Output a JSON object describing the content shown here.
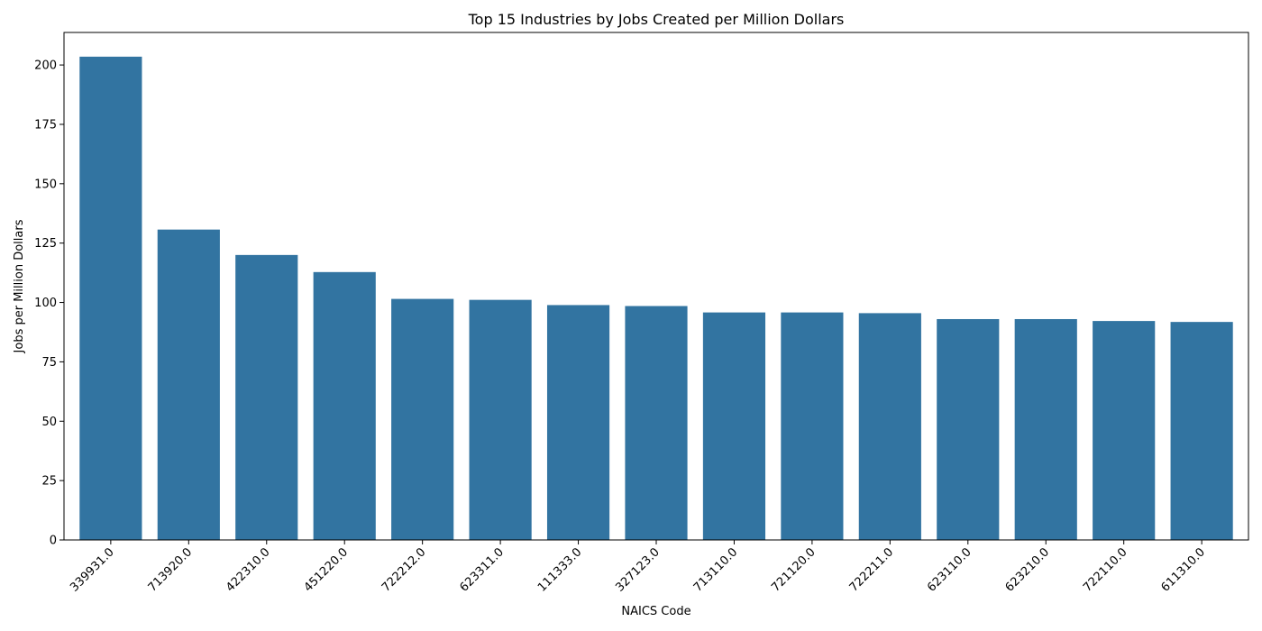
{
  "chart_data": {
    "type": "bar",
    "title": "Top 15 Industries by Jobs Created per Million Dollars",
    "xlabel": "NAICS Code",
    "ylabel": "Jobs per Million Dollars",
    "categories": [
      "339931.0",
      "713920.0",
      "422310.0",
      "451220.0",
      "722212.0",
      "623311.0",
      "111333.0",
      "327123.0",
      "713110.0",
      "721120.0",
      "722211.0",
      "623110.0",
      "623210.0",
      "722110.0",
      "611310.0"
    ],
    "values": [
      203.5,
      130.7,
      120.0,
      112.8,
      101.5,
      101.1,
      98.9,
      98.5,
      95.8,
      95.8,
      95.5,
      93.0,
      93.0,
      92.2,
      91.8
    ],
    "ylim": [
      0,
      213.7
    ],
    "yticks": [
      0,
      25,
      50,
      75,
      100,
      125,
      150,
      175,
      200
    ],
    "ytick_labels": [
      "0",
      "25",
      "50",
      "75",
      "100",
      "125",
      "150",
      "175",
      "200"
    ],
    "bar_color": "#3274a1",
    "grid": false,
    "xtick_rotation_deg": 45
  }
}
